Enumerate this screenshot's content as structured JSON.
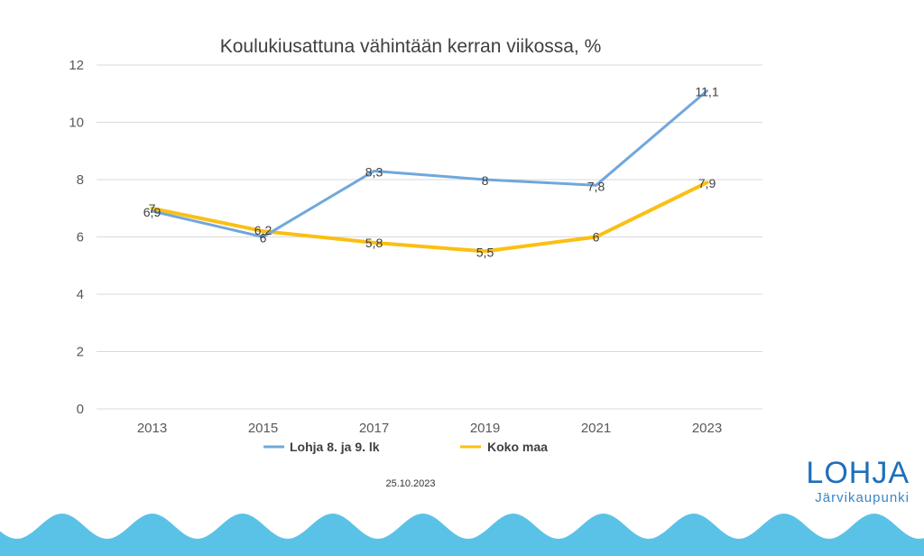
{
  "chart_data": {
    "type": "line",
    "title": "Koulukiusattuna vähintään kerran viikossa, %",
    "categories": [
      "2013",
      "2015",
      "2017",
      "2019",
      "2021",
      "2023"
    ],
    "ylim": [
      0,
      12
    ],
    "yticks": [
      "0",
      "2",
      "4",
      "6",
      "8",
      "10",
      "12"
    ],
    "grid": true,
    "legend_position": "bottom",
    "series": [
      {
        "name": "Lohja 8. ja 9. lk",
        "color": "#6fa8dc",
        "values": [
          6.9,
          6,
          8.3,
          8,
          7.8,
          11.1
        ],
        "labels": [
          "6,9",
          "6",
          "8,3",
          "8",
          "7,8",
          "11,1"
        ]
      },
      {
        "name": "Koko maa",
        "color": "#fbbf14",
        "values": [
          7,
          6.2,
          5.8,
          5.5,
          6,
          7.9
        ],
        "labels": [
          "7",
          "6,2",
          "5,8",
          "5,5",
          "6",
          "7,9"
        ]
      }
    ]
  },
  "footer": {
    "date": "25.10.2023"
  },
  "logo": {
    "name": "LOHJA",
    "tagline": "Järvikaupunki",
    "color": "#1e6fb8"
  },
  "decoration": {
    "wave_color": "#5bc2e7"
  }
}
